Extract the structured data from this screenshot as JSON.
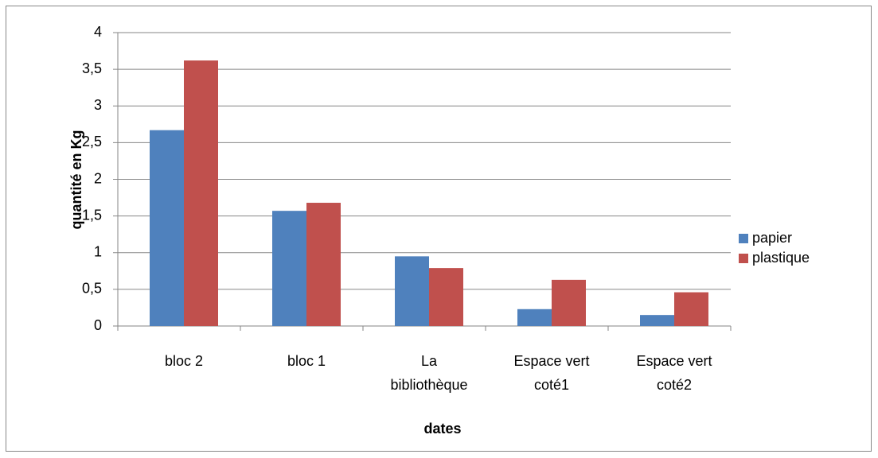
{
  "chart_data": {
    "type": "bar",
    "categories": [
      "bloc 2",
      "bloc 1",
      "La bibliothèque",
      "Espace vert coté1",
      "Espace vert coté2"
    ],
    "series": [
      {
        "name": "papier",
        "color": "#4f81bd",
        "values": [
          2.67,
          1.57,
          0.95,
          0.23,
          0.15
        ]
      },
      {
        "name": "plastique",
        "color": "#c0504d",
        "values": [
          3.62,
          1.68,
          0.79,
          0.63,
          0.46
        ]
      }
    ],
    "ylim": [
      0,
      4
    ],
    "yticks": [
      0,
      {
        "value": 0.5,
        "label": "0,5"
      },
      1,
      {
        "value": 1.5,
        "label": "1,5"
      },
      2,
      {
        "value": 2.5,
        "label": "2,5"
      },
      3,
      {
        "value": 3.5,
        "label": "3,5"
      },
      4
    ],
    "xlabel": "dates",
    "ylabel": "quantité en Kg",
    "grid": true,
    "legend": "right"
  }
}
